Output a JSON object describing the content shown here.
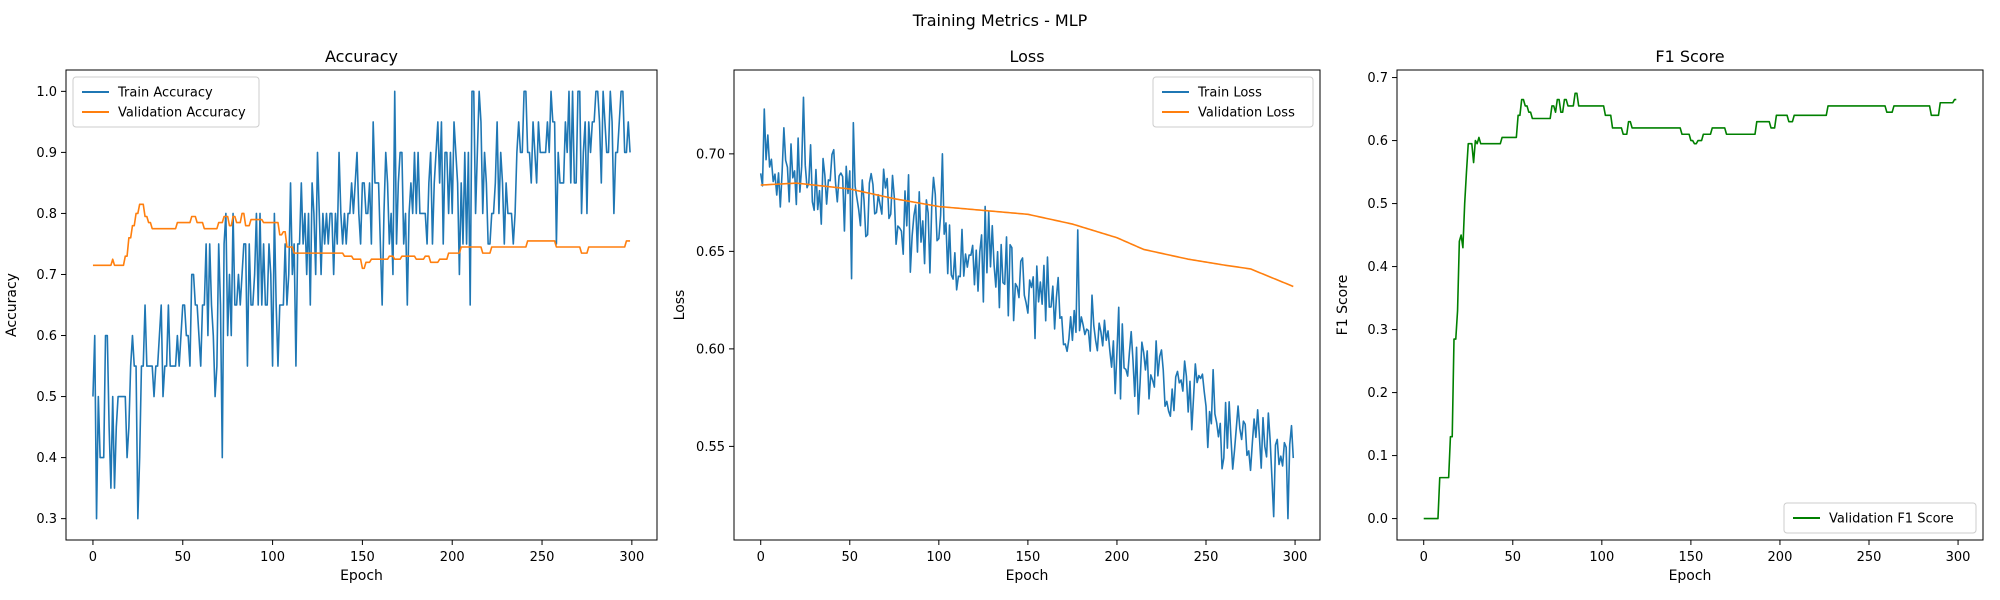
{
  "suptitle": "Training Metrics - MLP",
  "colors": {
    "train": "#1f77b4",
    "validation": "#ff7f0e",
    "f1": "#008000"
  },
  "chart_data": [
    {
      "type": "line",
      "title": "Accuracy",
      "xlabel": "Epoch",
      "ylabel": "Accuracy",
      "xlim": [
        -15,
        314
      ],
      "ylim": [
        0.265,
        1.035
      ],
      "xticks": [
        0,
        50,
        100,
        150,
        200,
        250,
        300
      ],
      "yticks": [
        0.3,
        0.4,
        0.5,
        0.6,
        0.7,
        0.8,
        0.9,
        1.0
      ],
      "legend": "upper left",
      "series": [
        {
          "name": "Train Accuracy",
          "color": "#1f77b4",
          "kind": "noisy",
          "anchors": [
            [
              0,
              0.5
            ],
            [
              10,
              0.48
            ],
            [
              20,
              0.52
            ],
            [
              30,
              0.55
            ],
            [
              40,
              0.6
            ],
            [
              50,
              0.6
            ],
            [
              60,
              0.63
            ],
            [
              70,
              0.67
            ],
            [
              80,
              0.68
            ],
            [
              90,
              0.68
            ],
            [
              100,
              0.7
            ],
            [
              110,
              0.72
            ],
            [
              120,
              0.74
            ],
            [
              130,
              0.76
            ],
            [
              140,
              0.78
            ],
            [
              150,
              0.79
            ],
            [
              160,
              0.8
            ],
            [
              170,
              0.81
            ],
            [
              180,
              0.82
            ],
            [
              190,
              0.83
            ],
            [
              200,
              0.84
            ],
            [
              210,
              0.85
            ],
            [
              220,
              0.86
            ],
            [
              230,
              0.87
            ],
            [
              240,
              0.88
            ],
            [
              250,
              0.89
            ],
            [
              260,
              0.9
            ],
            [
              270,
              0.9
            ],
            [
              280,
              0.91
            ],
            [
              299,
              0.91
            ]
          ],
          "noise": 0.1,
          "quantum": 0.05,
          "clip": [
            0.3,
            1.0
          ],
          "pins": [
            [
              0,
              0.5
            ],
            [
              1,
              0.6
            ],
            [
              2,
              0.3
            ],
            [
              3,
              0.5
            ],
            [
              5,
              0.4
            ],
            [
              8,
              0.6
            ],
            [
              12,
              0.35
            ],
            [
              25,
              0.3
            ],
            [
              72,
              0.4
            ],
            [
              78,
              0.8
            ],
            [
              168,
              1.0
            ],
            [
              210,
              0.65
            ],
            [
              212,
              1.0
            ],
            [
              240,
              1.0
            ],
            [
              280,
              1.0
            ],
            [
              288,
              1.0
            ],
            [
              296,
              0.9
            ],
            [
              299,
              0.9
            ]
          ],
          "seed": 11
        },
        {
          "name": "Validation Accuracy",
          "color": "#ff7f0e",
          "kind": "step",
          "points": [
            [
              0,
              0.715
            ],
            [
              10,
              0.715
            ],
            [
              11,
              0.725
            ],
            [
              12,
              0.715
            ],
            [
              18,
              0.73
            ],
            [
              20,
              0.76
            ],
            [
              22,
              0.78
            ],
            [
              24,
              0.8
            ],
            [
              26,
              0.815
            ],
            [
              28,
              0.815
            ],
            [
              29,
              0.795
            ],
            [
              31,
              0.785
            ],
            [
              33,
              0.775
            ],
            [
              45,
              0.775
            ],
            [
              47,
              0.785
            ],
            [
              52,
              0.785
            ],
            [
              55,
              0.795
            ],
            [
              58,
              0.785
            ],
            [
              62,
              0.775
            ],
            [
              68,
              0.775
            ],
            [
              70,
              0.785
            ],
            [
              73,
              0.795
            ],
            [
              76,
              0.78
            ],
            [
              78,
              0.795
            ],
            [
              80,
              0.785
            ],
            [
              83,
              0.8
            ],
            [
              85,
              0.78
            ],
            [
              88,
              0.79
            ],
            [
              95,
              0.785
            ],
            [
              100,
              0.785
            ],
            [
              104,
              0.765
            ],
            [
              106,
              0.77
            ],
            [
              108,
              0.745
            ],
            [
              112,
              0.735
            ],
            [
              135,
              0.735
            ],
            [
              140,
              0.73
            ],
            [
              145,
              0.725
            ],
            [
              150,
              0.71
            ],
            [
              152,
              0.72
            ],
            [
              155,
              0.725
            ],
            [
              165,
              0.73
            ],
            [
              168,
              0.725
            ],
            [
              172,
              0.73
            ],
            [
              180,
              0.725
            ],
            [
              185,
              0.73
            ],
            [
              188,
              0.72
            ],
            [
              193,
              0.725
            ],
            [
              198,
              0.735
            ],
            [
              205,
              0.745
            ],
            [
              215,
              0.745
            ],
            [
              217,
              0.735
            ],
            [
              222,
              0.745
            ],
            [
              240,
              0.745
            ],
            [
              242,
              0.755
            ],
            [
              255,
              0.755
            ],
            [
              258,
              0.745
            ],
            [
              270,
              0.745
            ],
            [
              272,
              0.735
            ],
            [
              276,
              0.745
            ],
            [
              296,
              0.745
            ],
            [
              297,
              0.755
            ],
            [
              299,
              0.755
            ]
          ]
        }
      ]
    },
    {
      "type": "line",
      "title": "Loss",
      "xlabel": "Epoch",
      "ylabel": "Loss",
      "xlim": [
        -15,
        314
      ],
      "ylim": [
        0.502,
        0.743
      ],
      "xticks": [
        0,
        50,
        100,
        150,
        200,
        250,
        300
      ],
      "yticks": [
        0.55,
        0.6,
        0.65,
        0.7
      ],
      "legend": "upper right",
      "series": [
        {
          "name": "Train Loss",
          "color": "#1f77b4",
          "kind": "noisy",
          "anchors": [
            [
              0,
              0.695
            ],
            [
              30,
              0.69
            ],
            [
              60,
              0.675
            ],
            [
              100,
              0.66
            ],
            [
              130,
              0.645
            ],
            [
              160,
              0.625
            ],
            [
              190,
              0.605
            ],
            [
              220,
              0.59
            ],
            [
              250,
              0.57
            ],
            [
              280,
              0.55
            ],
            [
              299,
              0.54
            ]
          ],
          "noise": 0.018,
          "quantum": 0,
          "clip": [
            0.512,
            0.73
          ],
          "pins": [
            [
              0,
              0.69
            ],
            [
              2,
              0.723
            ],
            [
              24,
              0.729
            ],
            [
              51,
              0.636
            ],
            [
              52,
              0.716
            ],
            [
              102,
              0.7
            ],
            [
              178,
              0.661
            ],
            [
              288,
              0.514
            ],
            [
              296,
              0.513
            ],
            [
              299,
              0.544
            ]
          ],
          "seed": 23
        },
        {
          "name": "Validation Loss",
          "color": "#ff7f0e",
          "kind": "smooth",
          "points": [
            [
              0,
              0.684
            ],
            [
              20,
              0.685
            ],
            [
              50,
              0.682
            ],
            [
              75,
              0.677
            ],
            [
              100,
              0.673
            ],
            [
              125,
              0.671
            ],
            [
              150,
              0.669
            ],
            [
              175,
              0.664
            ],
            [
              200,
              0.657
            ],
            [
              215,
              0.651
            ],
            [
              240,
              0.646
            ],
            [
              260,
              0.643
            ],
            [
              275,
              0.641
            ],
            [
              299,
              0.632
            ]
          ]
        }
      ]
    },
    {
      "type": "line",
      "title": "F1 Score",
      "xlabel": "Epoch",
      "ylabel": "F1 Score",
      "xlim": [
        -15,
        314
      ],
      "ylim": [
        -0.034,
        0.712
      ],
      "xticks": [
        0,
        50,
        100,
        150,
        200,
        250,
        300
      ],
      "yticks": [
        0.0,
        0.1,
        0.2,
        0.3,
        0.4,
        0.5,
        0.6,
        0.7
      ],
      "legend": "lower right",
      "series": [
        {
          "name": "Validation F1 Score",
          "color": "#008000",
          "kind": "step",
          "points": [
            [
              0,
              0
            ],
            [
              8,
              0
            ],
            [
              9,
              0.065
            ],
            [
              14,
              0.065
            ],
            [
              15,
              0.13
            ],
            [
              16,
              0.13
            ],
            [
              17,
              0.285
            ],
            [
              18,
              0.285
            ],
            [
              19,
              0.33
            ],
            [
              20,
              0.44
            ],
            [
              21,
              0.45
            ],
            [
              22,
              0.43
            ],
            [
              23,
              0.5
            ],
            [
              24,
              0.55
            ],
            [
              25,
              0.595
            ],
            [
              27,
              0.595
            ],
            [
              28,
              0.565
            ],
            [
              29,
              0.6
            ],
            [
              30,
              0.595
            ],
            [
              31,
              0.605
            ],
            [
              32,
              0.595
            ],
            [
              43,
              0.595
            ],
            [
              44,
              0.605
            ],
            [
              52,
              0.605
            ],
            [
              53,
              0.64
            ],
            [
              55,
              0.665
            ],
            [
              57,
              0.655
            ],
            [
              59,
              0.645
            ],
            [
              61,
              0.635
            ],
            [
              70,
              0.635
            ],
            [
              72,
              0.655
            ],
            [
              74,
              0.645
            ],
            [
              75,
              0.665
            ],
            [
              77,
              0.645
            ],
            [
              79,
              0.665
            ],
            [
              81,
              0.655
            ],
            [
              85,
              0.675
            ],
            [
              87,
              0.655
            ],
            [
              100,
              0.655
            ],
            [
              102,
              0.64
            ],
            [
              106,
              0.62
            ],
            [
              110,
              0.62
            ],
            [
              112,
              0.61
            ],
            [
              115,
              0.63
            ],
            [
              117,
              0.62
            ],
            [
              143,
              0.62
            ],
            [
              145,
              0.61
            ],
            [
              150,
              0.6
            ],
            [
              152,
              0.595
            ],
            [
              154,
              0.6
            ],
            [
              157,
              0.61
            ],
            [
              162,
              0.62
            ],
            [
              168,
              0.62
            ],
            [
              170,
              0.61
            ],
            [
              185,
              0.61
            ],
            [
              187,
              0.63
            ],
            [
              193,
              0.63
            ],
            [
              195,
              0.62
            ],
            [
              198,
              0.64
            ],
            [
              205,
              0.63
            ],
            [
              208,
              0.64
            ],
            [
              225,
              0.64
            ],
            [
              227,
              0.655
            ],
            [
              258,
              0.655
            ],
            [
              260,
              0.645
            ],
            [
              264,
              0.655
            ],
            [
              283,
              0.655
            ],
            [
              285,
              0.64
            ],
            [
              288,
              0.64
            ],
            [
              290,
              0.66
            ],
            [
              297,
              0.66
            ],
            [
              298,
              0.665
            ],
            [
              299,
              0.665
            ]
          ]
        }
      ]
    }
  ]
}
